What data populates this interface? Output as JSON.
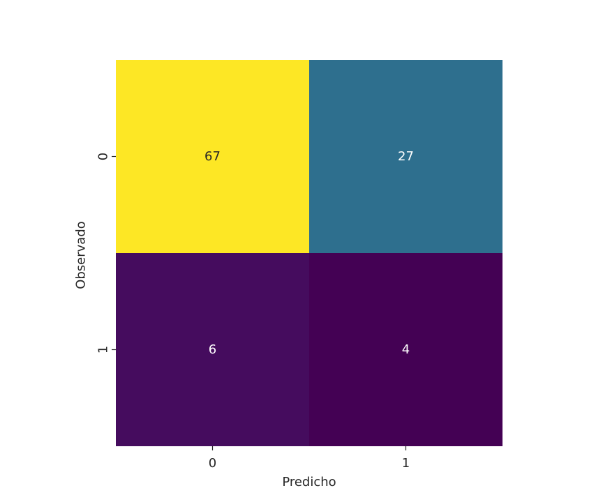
{
  "chart_data": {
    "type": "heatmap",
    "xlabel": "Predicho",
    "ylabel": "Observado",
    "x_categories": [
      "0",
      "1"
    ],
    "y_categories": [
      "0",
      "1"
    ],
    "values": [
      [
        67,
        27
      ],
      [
        6,
        4
      ]
    ],
    "colormap": "viridis",
    "colorbar": false,
    "annotations": true,
    "grid": false
  }
}
